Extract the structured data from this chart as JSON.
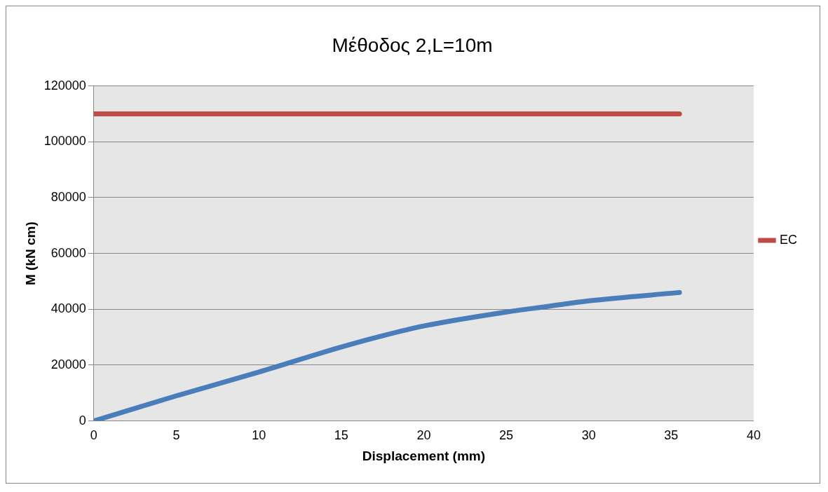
{
  "chart_data": {
    "type": "line",
    "title": "Μέθοδος 2,L=10m",
    "xlabel": "Displacement (mm)",
    "ylabel": "M (kN cm)",
    "series": [
      {
        "color": "#4a7ebb",
        "x": [
          0,
          5,
          10,
          15,
          17.5,
          20,
          25,
          27.5,
          30,
          35.5
        ],
        "values": [
          0,
          9000,
          17500,
          26500,
          30500,
          34000,
          39000,
          41000,
          43000,
          46000
        ]
      },
      {
        "name": "EC",
        "color": "#be4b48",
        "x": [
          0,
          35.5
        ],
        "values": [
          110000,
          110000
        ]
      }
    ],
    "xlim": [
      0,
      40
    ],
    "xticks": [
      0,
      5,
      10,
      15,
      20,
      25,
      30,
      35,
      40
    ],
    "ylim": [
      0,
      120000
    ],
    "yticks": [
      0,
      20000,
      40000,
      60000,
      80000,
      100000,
      120000
    ],
    "grid": "y",
    "legend": "right",
    "marker": "none",
    "line_style": "solid"
  }
}
